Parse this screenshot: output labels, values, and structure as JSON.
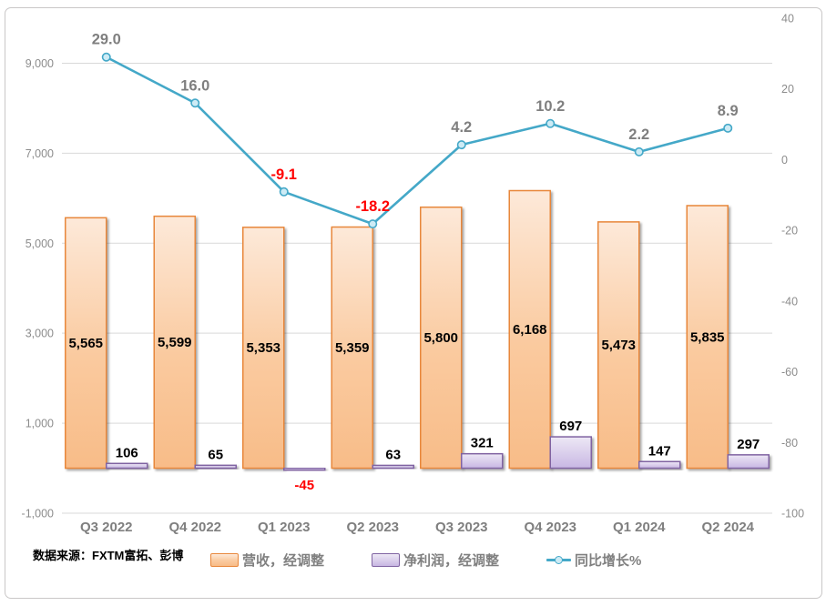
{
  "source_note": "数据来源：FXTM富拓、彭博",
  "legend": [
    {
      "label": "营收，经调整",
      "swatch": "orange-gradient-box"
    },
    {
      "label": "净利润，经调整",
      "swatch": "purple-gradient-box"
    },
    {
      "label": "同比增长%",
      "swatch": "teal-line-with-marker"
    }
  ],
  "colors": {
    "revenue_fill_top": "#FDE9D9",
    "revenue_fill_mid": "#FACA9F",
    "revenue_fill_bottom": "#F8BC88",
    "revenue_border": "#E8873B",
    "profit_fill_top": "#EDE8F5",
    "profit_fill_bottom": "#C8B7E3",
    "profit_border": "#8064A2",
    "line": "#44A8C8",
    "marker_fill": "#CDEBF5",
    "gridline": "#D9D9D9",
    "axis_text": "#8C8C8C",
    "category_text": "#7F7F7F",
    "value_text": "#000000",
    "negative_text": "#FF0000",
    "frame_border": "#C9C7C7"
  },
  "chart_data": {
    "type": "bar+line combo",
    "categories": [
      "Q3 2022",
      "Q4 2022",
      "Q1 2023",
      "Q2 2023",
      "Q3 2023",
      "Q4 2023",
      "Q1 2024",
      "Q2 2024"
    ],
    "series": [
      {
        "name": "营收，经调整",
        "type": "bar",
        "axis": "left",
        "values": [
          5565,
          5599,
          5353,
          5359,
          5800,
          6168,
          5473,
          5835
        ],
        "labels": [
          "5,565",
          "5,599",
          "5,353",
          "5,359",
          "5,800",
          "6,168",
          "5,473",
          "5,835"
        ]
      },
      {
        "name": "净利润，经调整",
        "type": "bar",
        "axis": "left",
        "values": [
          106,
          65,
          -45,
          63,
          321,
          697,
          147,
          297
        ],
        "labels": [
          "106",
          "65",
          "-45",
          "63",
          "321",
          "697",
          "147",
          "297"
        ]
      },
      {
        "name": "同比增长%",
        "type": "line",
        "axis": "right",
        "values": [
          29.0,
          16.0,
          -9.1,
          -18.2,
          4.2,
          10.2,
          2.2,
          8.9
        ],
        "labels": [
          "29.0",
          "16.0",
          "-9.1",
          "-18.2",
          "4.2",
          "10.2",
          "2.2",
          "8.9"
        ]
      }
    ],
    "left_axis": {
      "range": [
        -1000,
        10000
      ],
      "ticks": [
        9000,
        7000,
        5000,
        3000,
        1000,
        -1000
      ],
      "tick_labels": [
        "9,000",
        "7,000",
        "5,000",
        "3,000",
        "1,000",
        "-1,000"
      ]
    },
    "right_axis": {
      "range": [
        -100,
        40
      ],
      "ticks": [
        40,
        20,
        0,
        -20,
        -40,
        -60,
        -80,
        -100
      ],
      "tick_labels": [
        "40",
        "20",
        "0",
        "-20",
        "-40",
        "-60",
        "-80",
        "-100"
      ]
    },
    "grid": "horizontal-only",
    "legend_position": "bottom"
  }
}
